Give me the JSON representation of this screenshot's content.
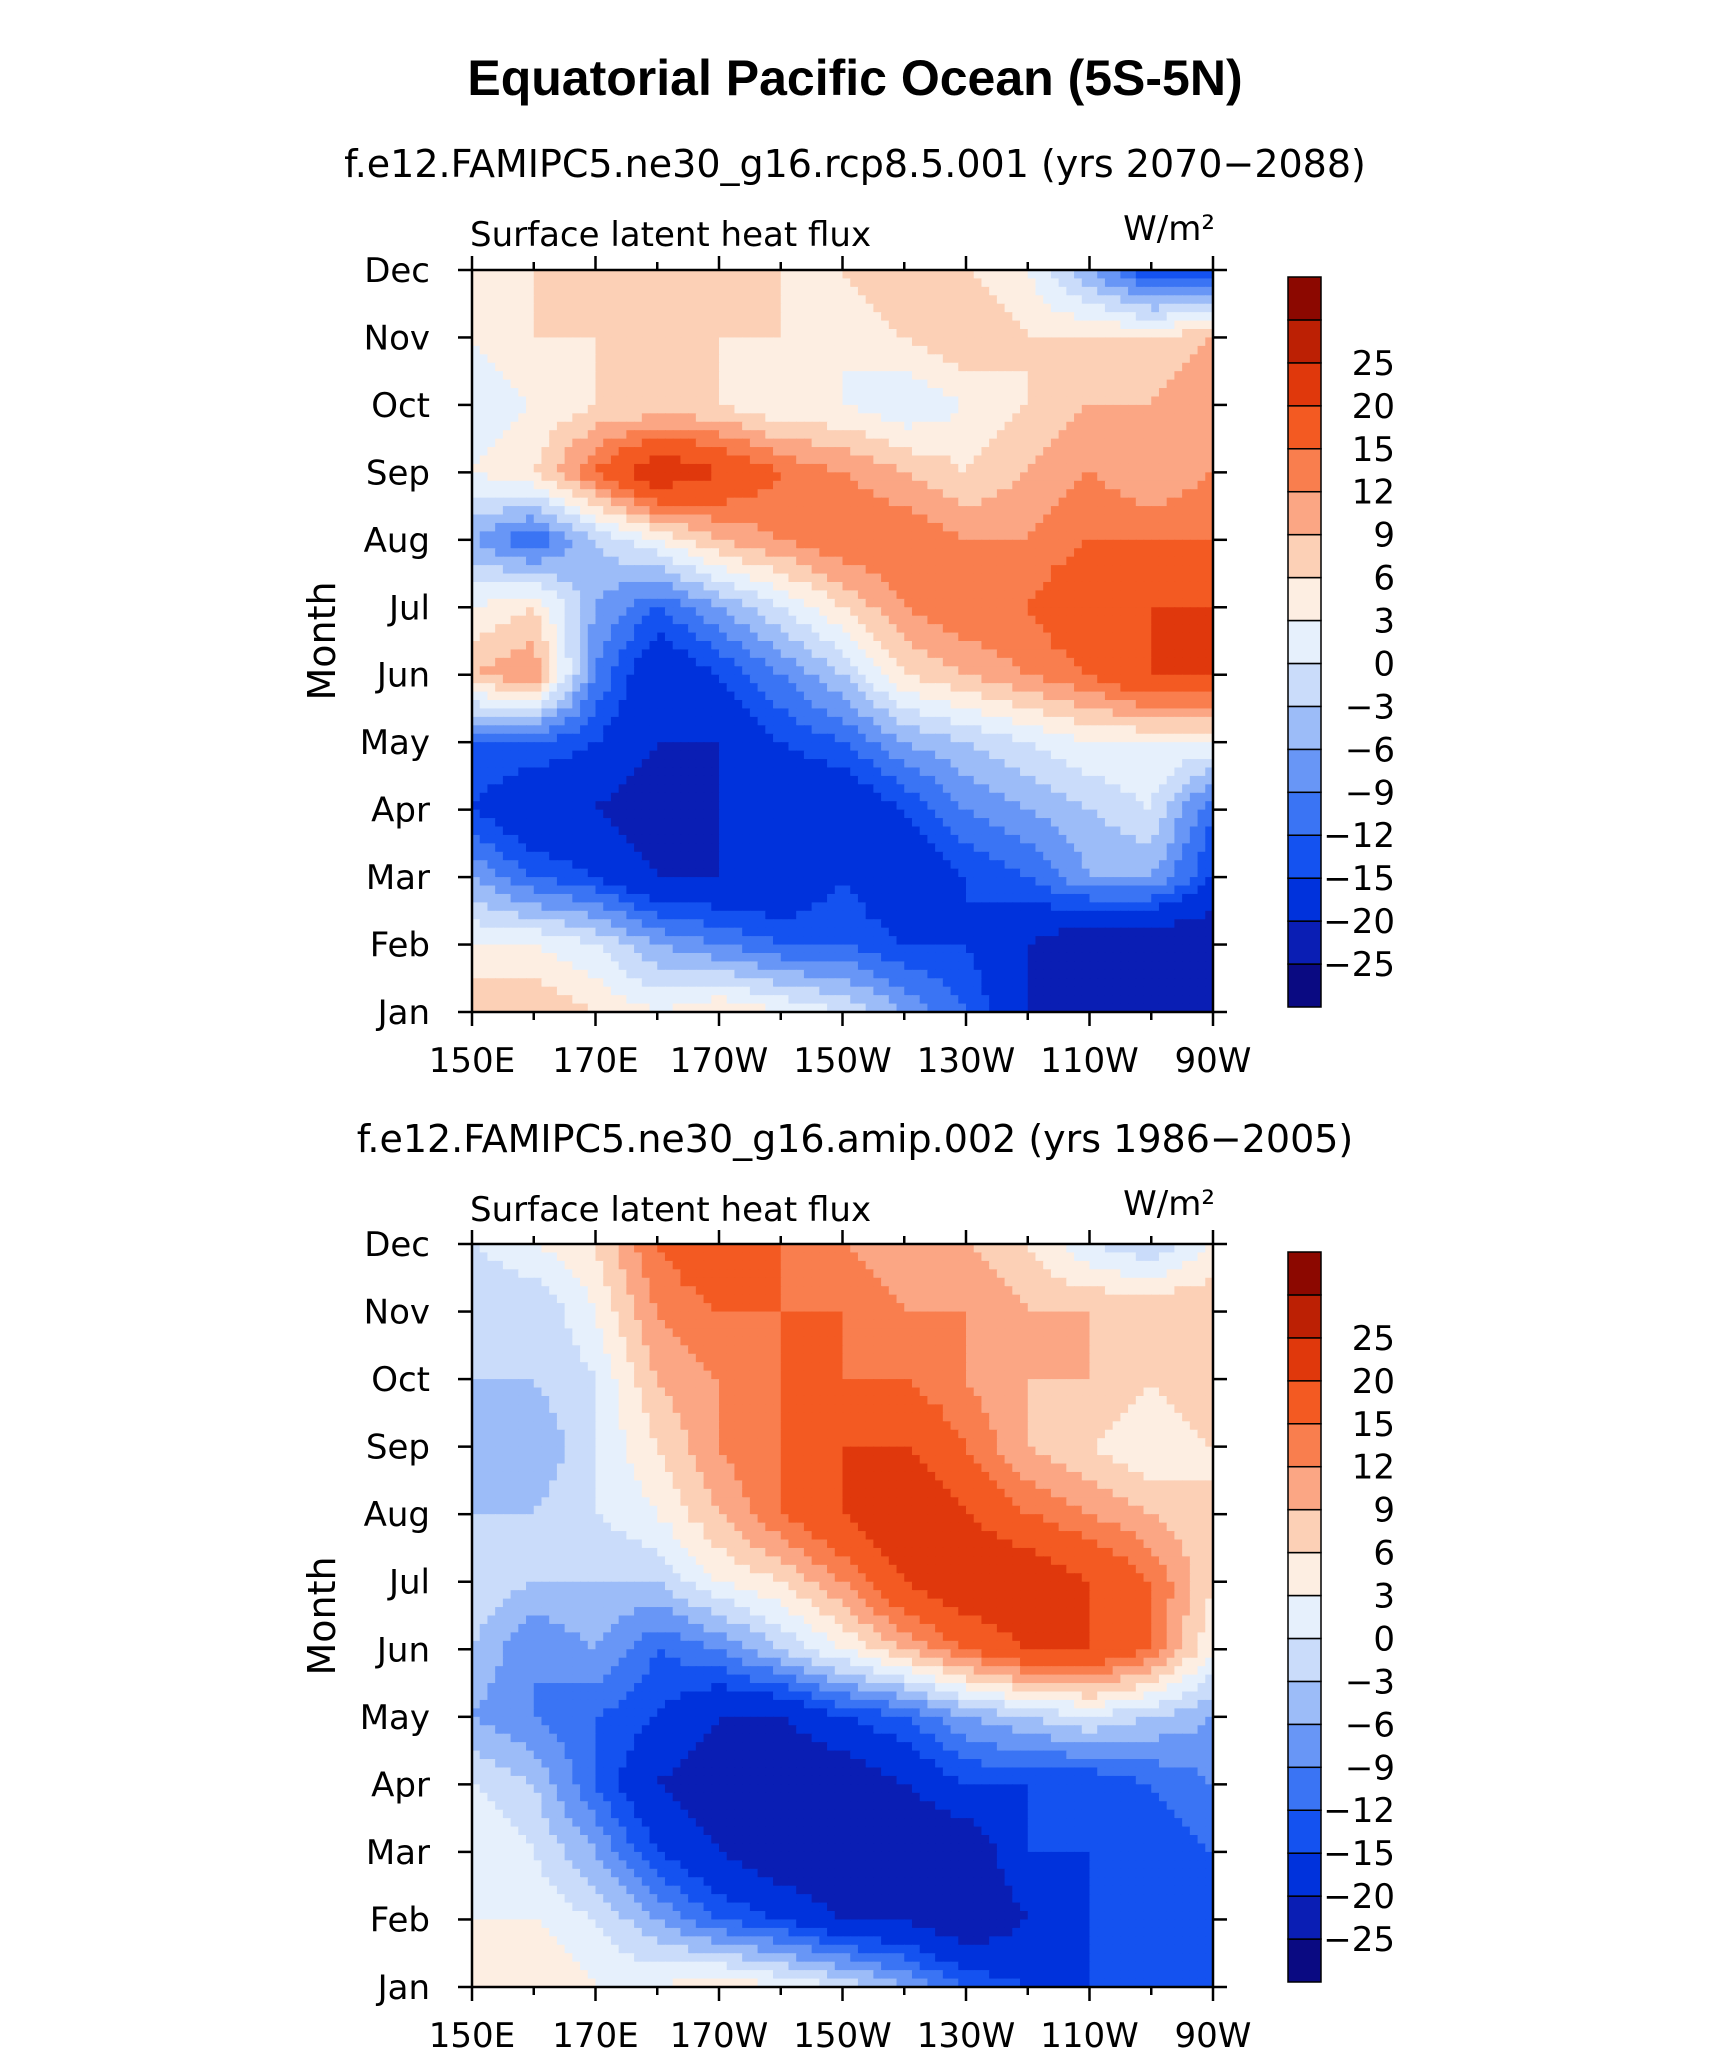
{
  "title": "Equatorial Pacific Ocean (5S-5N)",
  "palette": [
    "#0a0a82",
    "#0a1eb4",
    "#0032dc",
    "#1452f0",
    "#3a74f4",
    "#6896f6",
    "#9cbcf8",
    "#cadcfa",
    "#e6f0fc",
    "#fdeee2",
    "#fcd0b6",
    "#fba684",
    "#f97e4e",
    "#f35a22",
    "#e0380c",
    "#bc2004",
    "#8c0800"
  ],
  "colorbar": {
    "levels": [
      -25,
      -20,
      -15,
      -12,
      -9,
      -6,
      -3,
      0,
      3,
      6,
      9,
      12,
      15,
      20,
      25
    ],
    "labels": [
      "−25",
      "−20",
      "−15",
      "−12",
      "−9",
      "−6",
      "−3",
      "0",
      "3",
      "6",
      "9",
      "12",
      "15",
      "20",
      "25"
    ]
  },
  "panels": [
    {
      "title": "f.e12.FAMIPC5.ne30_g16.rcp8.5.001 (yrs 2070−2088)",
      "left_label": "Surface latent heat flux",
      "units": "W/m²",
      "ylabel": "Month"
    },
    {
      "title": "f.e12.FAMIPC5.ne30_g16.amip.002 (yrs 1986−2005)",
      "left_label": "Surface latent heat flux",
      "units": "W/m²",
      "ylabel": "Month"
    }
  ],
  "chart_data": [
    {
      "type": "heatmap",
      "title": "f.e12.FAMIPC5.ne30_g16.rcp8.5.001 (yrs 2070−2088)",
      "variable": "Surface latent heat flux",
      "units": "W/m²",
      "xlabel": "",
      "ylabel": "Month",
      "x": [
        150,
        160,
        170,
        180,
        190,
        200,
        210,
        220,
        230,
        240,
        250,
        260,
        270
      ],
      "x_ticks": [
        "150E",
        "170E",
        "170W",
        "150W",
        "130W",
        "110W",
        "90W"
      ],
      "y": [
        "Jan",
        "Feb",
        "Mar",
        "Apr",
        "May",
        "Jun",
        "Jul",
        "Aug",
        "Sep",
        "Oct",
        "Nov",
        "Dec"
      ],
      "z": [
        [
          9,
          9,
          6,
          3,
          6,
          3,
          0,
          -6,
          -12,
          -20,
          -25,
          -25,
          -25
        ],
        [
          3,
          3,
          0,
          -6,
          -9,
          -12,
          -12,
          -15,
          -15,
          -20,
          -25,
          -25,
          -25
        ],
        [
          -6,
          -12,
          -15,
          -20,
          -20,
          -20,
          -15,
          -20,
          -15,
          -12,
          -6,
          -6,
          -15
        ],
        [
          -15,
          -20,
          -20,
          -25,
          -20,
          -20,
          -20,
          -15,
          -9,
          -6,
          -3,
          0,
          -12
        ],
        [
          -12,
          -12,
          -15,
          -20,
          -20,
          -15,
          -12,
          -6,
          -3,
          0,
          3,
          3,
          3
        ],
        [
          9,
          12,
          -9,
          -20,
          -15,
          -9,
          -3,
          6,
          9,
          12,
          15,
          20,
          20
        ],
        [
          3,
          6,
          -6,
          -12,
          -6,
          0,
          6,
          12,
          15,
          15,
          20,
          20,
          20
        ],
        [
          -6,
          -12,
          -3,
          3,
          9,
          12,
          15,
          15,
          12,
          12,
          15,
          15,
          15
        ],
        [
          3,
          6,
          15,
          25,
          20,
          15,
          12,
          9,
          6,
          9,
          12,
          9,
          12
        ],
        [
          0,
          3,
          6,
          6,
          6,
          3,
          3,
          0,
          3,
          6,
          9,
          9,
          12
        ],
        [
          3,
          6,
          6,
          9,
          6,
          6,
          3,
          6,
          9,
          6,
          6,
          6,
          9
        ],
        [
          6,
          6,
          6,
          9,
          6,
          6,
          6,
          9,
          6,
          3,
          -6,
          -15,
          -15
        ]
      ]
    },
    {
      "type": "heatmap",
      "title": "f.e12.FAMIPC5.ne30_g16.amip.002 (yrs 1986−2005)",
      "variable": "Surface latent heat flux",
      "units": "W/m²",
      "xlabel": "",
      "ylabel": "Month",
      "x": [
        150,
        160,
        170,
        180,
        190,
        200,
        210,
        220,
        230,
        240,
        250,
        260,
        270
      ],
      "x_ticks": [
        "150E",
        "170E",
        "170W",
        "150W",
        "130W",
        "110W",
        "90W"
      ],
      "y": [
        "Jan",
        "Feb",
        "Mar",
        "Apr",
        "May",
        "Jun",
        "Jul",
        "Aug",
        "Sep",
        "Oct",
        "Nov",
        "Dec"
      ],
      "z": [
        [
          6,
          6,
          3,
          3,
          6,
          3,
          0,
          -6,
          -12,
          -15,
          -15,
          -15,
          -15
        ],
        [
          3,
          3,
          0,
          -6,
          -12,
          -15,
          -20,
          -20,
          -25,
          -20,
          -15,
          -15,
          -15
        ],
        [
          3,
          0,
          -6,
          -15,
          -20,
          -25,
          -25,
          -25,
          -25,
          -15,
          -15,
          -15,
          -12
        ],
        [
          0,
          -3,
          -12,
          -20,
          -25,
          -25,
          -25,
          -20,
          -15,
          -15,
          -15,
          -12,
          -9
        ],
        [
          -6,
          -9,
          -12,
          -15,
          -20,
          -20,
          -15,
          -12,
          -6,
          -3,
          0,
          -3,
          -6
        ],
        [
          -3,
          -9,
          -6,
          -12,
          -9,
          -3,
          3,
          9,
          15,
          20,
          20,
          15,
          3
        ],
        [
          0,
          -3,
          -3,
          -3,
          3,
          6,
          12,
          20,
          25,
          25,
          20,
          15,
          6
        ],
        [
          -3,
          -3,
          0,
          3,
          9,
          15,
          20,
          25,
          20,
          15,
          12,
          9,
          6
        ],
        [
          -3,
          -6,
          0,
          6,
          12,
          15,
          20,
          20,
          15,
          9,
          6,
          3,
          6
        ],
        [
          -3,
          -3,
          0,
          9,
          12,
          15,
          15,
          15,
          12,
          9,
          9,
          6,
          9
        ],
        [
          -3,
          -3,
          3,
          12,
          15,
          15,
          15,
          12,
          12,
          9,
          9,
          9,
          9
        ],
        [
          0,
          3,
          6,
          15,
          20,
          15,
          12,
          9,
          9,
          6,
          0,
          -3,
          3
        ]
      ]
    }
  ]
}
